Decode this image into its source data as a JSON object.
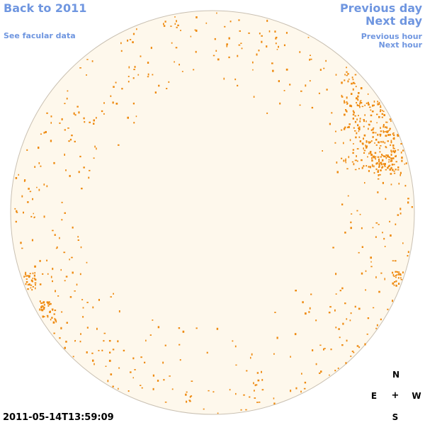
{
  "nav": {
    "back": "Back to 2011",
    "facular": "See facular data",
    "previous_day": "Previous day",
    "next_day": "Next day",
    "previous_hour": "Previous hour",
    "next_hour": "Next hour"
  },
  "compass": {
    "north": "N",
    "east": "E",
    "center": "+",
    "west": "W",
    "south": "S"
  },
  "timestamp": "2011-05-14T13:59:09",
  "colors": {
    "disk_fill": "#fef8ec",
    "disk_edge": "#c9c0b2",
    "faculae": "#ee8a10",
    "link": "#6f96e0"
  }
}
